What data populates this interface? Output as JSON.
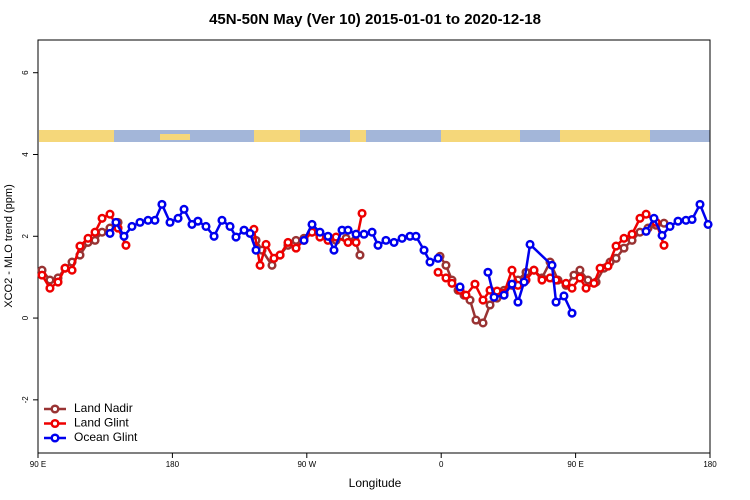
{
  "chart_data": {
    "type": "line",
    "title": "45N-50N May (Ver 10)   2015-01-01 to 2020-12-18",
    "x_label": "Longitude",
    "y_label": "XCO2 - MLO trend (ppm)",
    "xlim": [
      90,
      540
    ],
    "ylim": [
      -3.3,
      6.8
    ],
    "xticks": [
      {
        "value": 90,
        "label": "90 E"
      },
      180,
      {
        "value": 270,
        "label": "90 W"
      },
      {
        "value": 360,
        "label": "0"
      },
      {
        "value": 450,
        "label": "90 E"
      },
      {
        "value": 540,
        "label": "180"
      }
    ],
    "yticks": [
      -2,
      0,
      2,
      4,
      6
    ],
    "legend": "bottomleft",
    "series": [
      {
        "name": "Land Nadir",
        "color": "#993333",
        "x": [
          92.7,
          98.0,
          103.4,
          108.1,
          112.8,
          118.1,
          123.5,
          128.2,
          132.9,
          138.2,
          143.6,
          null,
          236.0,
          240.0,
          246.7,
          252.1,
          257.4,
          262.8,
          268.1,
          273.5,
          278.8,
          284.2,
          289.6,
          296.3,
          302.3,
          305.6,
          null,
          359.2,
          363.2,
          367.2,
          371.3,
          375.3,
          379.3,
          383.3,
          388.0,
          392.7,
          397.4,
          402.1,
          407.4,
          411.4,
          416.8,
          422.1,
          427.5,
          432.9,
          438.2,
          443.6,
          448.9,
          452.9,
          458.3,
          463.7,
          469.0,
          473.1,
          477.1,
          482.4,
          487.8,
          493.1,
          498.5,
          503.9,
          509.2
        ],
        "values": [
          1.17,
          0.93,
          0.98,
          1.22,
          1.37,
          1.54,
          1.85,
          1.9,
          2.1,
          2.2,
          2.34,
          null,
          1.9,
          1.66,
          1.29,
          1.54,
          1.78,
          1.9,
          1.95,
          2.1,
          2.02,
          1.95,
          1.9,
          1.95,
          1.9,
          1.54,
          null,
          1.51,
          1.29,
          0.93,
          0.68,
          0.56,
          0.44,
          -0.05,
          -0.12,
          0.32,
          0.49,
          0.68,
          0.8,
          0.93,
          1.12,
          1.17,
          0.98,
          1.37,
          0.93,
          0.8,
          1.05,
          1.17,
          0.93,
          0.88,
          1.22,
          1.37,
          1.46,
          1.71,
          1.9,
          2.1,
          2.2,
          2.27,
          2.32
        ]
      },
      {
        "name": "Land Glint",
        "color": "#ee0000",
        "x": [
          92.7,
          98.0,
          103.4,
          108.1,
          112.8,
          118.1,
          123.5,
          128.2,
          132.9,
          138.2,
          143.6,
          148.9,
          null,
          234.6,
          238.7,
          242.7,
          248.0,
          252.1,
          257.4,
          262.8,
          268.1,
          273.5,
          278.8,
          284.2,
          289.6,
          297.6,
          303.0,
          307.0,
          null,
          357.9,
          363.2,
          367.2,
          372.6,
          376.6,
          382.6,
          388.0,
          392.7,
          397.4,
          402.1,
          407.4,
          411.4,
          416.8,
          422.1,
          427.5,
          432.9,
          436.9,
          443.6,
          447.6,
          452.9,
          457.0,
          462.3,
          466.4,
          471.7,
          477.1,
          482.4,
          487.8,
          493.1,
          497.2,
          503.9,
          509.2
        ],
        "values": [
          1.05,
          0.73,
          0.88,
          1.22,
          1.17,
          1.76,
          1.95,
          2.1,
          2.44,
          2.54,
          2.2,
          1.78,
          null,
          2.17,
          1.29,
          1.8,
          1.46,
          1.54,
          1.85,
          1.71,
          1.9,
          2.1,
          1.98,
          1.9,
          1.98,
          1.85,
          1.85,
          2.56,
          null,
          1.12,
          0.98,
          0.85,
          0.68,
          0.56,
          0.83,
          0.44,
          0.68,
          0.66,
          0.61,
          1.17,
          0.8,
          0.93,
          1.17,
          0.93,
          0.98,
          0.93,
          0.85,
          0.73,
          0.98,
          0.73,
          0.85,
          1.22,
          1.27,
          1.76,
          1.95,
          2.05,
          2.44,
          2.54,
          2.34,
          1.78
        ]
      },
      {
        "name": "Ocean Glint",
        "color": "#0000ee",
        "x": [
          138.2,
          142.2,
          147.6,
          152.9,
          158.3,
          163.7,
          168.3,
          173.0,
          178.4,
          183.8,
          187.8,
          193.1,
          197.1,
          202.5,
          207.9,
          213.2,
          218.6,
          222.6,
          228.0,
          232.0,
          236.0,
          null,
          268.1,
          273.5,
          278.8,
          284.2,
          288.2,
          293.6,
          297.6,
          303.0,
          308.3,
          313.7,
          317.7,
          323.0,
          328.4,
          333.8,
          339.1,
          343.1,
          348.5,
          352.5,
          357.9,
          null,
          372.6,
          null,
          391.3,
          395.4,
          402.1,
          407.4,
          411.4,
          415.5,
          419.5,
          434.2,
          436.9,
          442.2,
          447.6,
          null,
          497.2,
          502.5,
          507.9,
          513.2,
          518.6,
          523.9,
          528.0,
          533.3,
          538.7
        ],
        "values": [
          2.07,
          2.34,
          2.0,
          2.24,
          2.34,
          2.39,
          2.39,
          2.78,
          2.34,
          2.44,
          2.66,
          2.29,
          2.37,
          2.24,
          2.0,
          2.39,
          2.24,
          1.98,
          2.15,
          2.07,
          1.66,
          null,
          1.9,
          2.29,
          2.1,
          2.0,
          1.66,
          2.15,
          2.15,
          2.05,
          2.05,
          2.1,
          1.78,
          1.9,
          1.85,
          1.95,
          2.0,
          2.0,
          1.66,
          1.37,
          1.46,
          null,
          0.76,
          null,
          1.12,
          0.51,
          0.56,
          0.83,
          0.39,
          0.88,
          1.8,
          1.29,
          0.39,
          0.54,
          0.12,
          null,
          2.12,
          2.44,
          2.02,
          2.24,
          2.37,
          2.39,
          2.41,
          2.78,
          2.29
        ]
      }
    ]
  }
}
